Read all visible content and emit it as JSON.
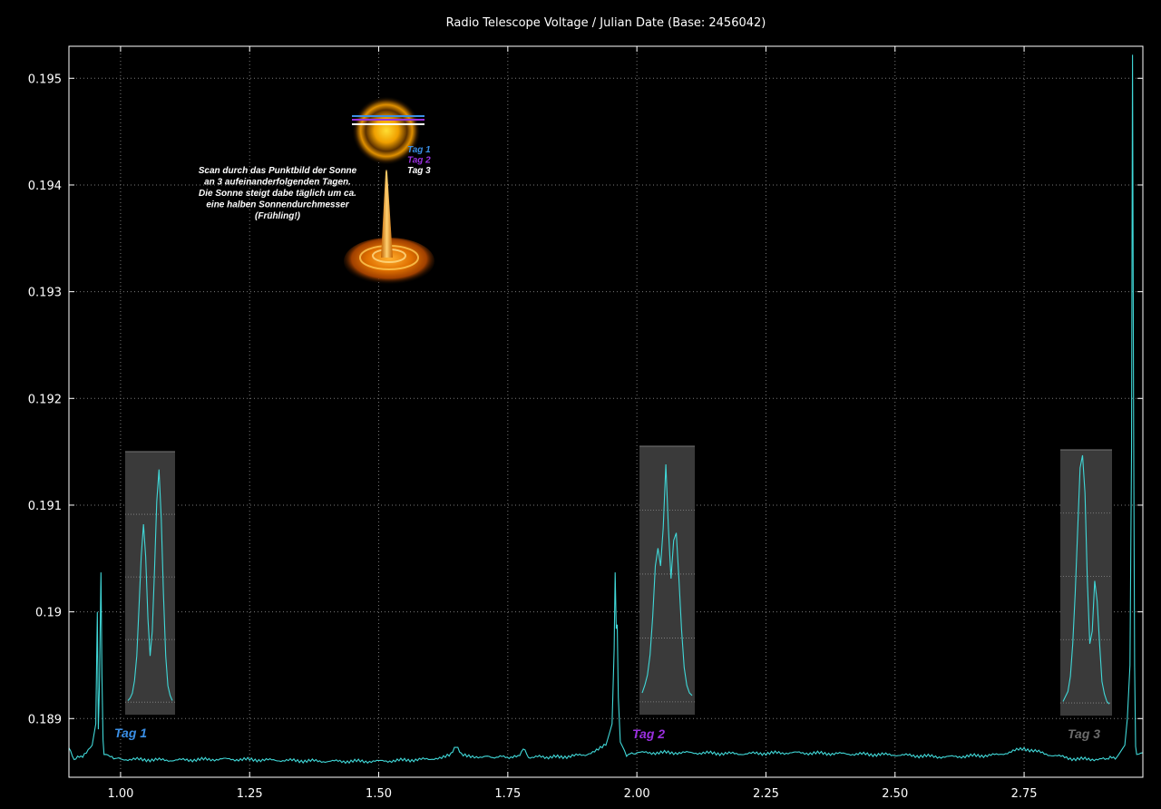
{
  "chart_data": {
    "type": "line",
    "title": "Radio Telescope Voltage / Julian Date (Base: 2456042)",
    "xlabel": "",
    "ylabel": "",
    "xlim": [
      0.9,
      2.98
    ],
    "ylim": [
      0.18845,
      0.1953
    ],
    "x_ticks": [
      "1.00",
      "1.25",
      "1.50",
      "1.75",
      "2.00",
      "2.25",
      "2.50",
      "2.75"
    ],
    "y_ticks": [
      "0.189",
      "0.19",
      "0.191",
      "0.192",
      "0.193",
      "0.194",
      "0.195"
    ],
    "grid": true,
    "series": [
      {
        "color": "#40d8d8",
        "x": [
          0.9,
          0.91,
          0.93,
          0.945,
          0.952,
          0.955,
          0.957,
          0.959,
          0.962,
          0.964,
          0.966,
          0.968,
          0.972,
          0.98,
          1.0,
          1.1,
          1.2,
          1.3,
          1.4,
          1.5,
          1.6,
          1.64,
          1.65,
          1.66,
          1.7,
          1.77,
          1.78,
          1.79,
          1.85,
          1.9,
          1.94,
          1.952,
          1.956,
          1.958,
          1.96,
          1.962,
          1.964,
          1.968,
          1.98,
          2.0,
          2.1,
          2.2,
          2.3,
          2.4,
          2.5,
          2.6,
          2.7,
          2.75,
          2.8,
          2.85,
          2.9,
          2.93,
          2.945,
          2.95,
          2.955,
          2.958,
          2.96,
          2.962,
          2.964,
          2.966,
          2.968,
          2.972,
          2.98
        ],
        "y": [
          0.18872,
          0.18862,
          0.18866,
          0.18875,
          0.18895,
          0.19,
          0.1889,
          0.1893,
          0.19037,
          0.1894,
          0.1888,
          0.18868,
          0.18866,
          0.18864,
          0.18862,
          0.18861,
          0.18862,
          0.18861,
          0.1886,
          0.1886,
          0.18862,
          0.18866,
          0.18875,
          0.18866,
          0.18864,
          0.18864,
          0.18872,
          0.18864,
          0.18864,
          0.18866,
          0.18875,
          0.18895,
          0.18965,
          0.19037,
          0.18985,
          0.18988,
          0.1892,
          0.18878,
          0.18866,
          0.18868,
          0.18868,
          0.18867,
          0.18868,
          0.18867,
          0.18866,
          0.18864,
          0.18866,
          0.18872,
          0.18866,
          0.18862,
          0.18862,
          0.18864,
          0.18875,
          0.189,
          0.1895,
          0.1915,
          0.19522,
          0.1918,
          0.1895,
          0.18875,
          0.18868,
          0.18866,
          0.18868
        ]
      }
    ],
    "insets": [
      {
        "label": "Tag 1",
        "label_color": "#3a8fe6",
        "profile": [
          0.02,
          0.03,
          0.05,
          0.1,
          0.2,
          0.4,
          0.6,
          0.73,
          0.6,
          0.35,
          0.2,
          0.3,
          0.55,
          0.82,
          0.95,
          0.75,
          0.45,
          0.2,
          0.08,
          0.04,
          0.02
        ]
      },
      {
        "label": "Tag 2",
        "label_color": "#9b30e0",
        "profile": [
          0.05,
          0.08,
          0.12,
          0.2,
          0.35,
          0.55,
          0.62,
          0.55,
          0.7,
          0.95,
          0.7,
          0.5,
          0.65,
          0.68,
          0.5,
          0.3,
          0.15,
          0.08,
          0.05,
          0.04
        ]
      },
      {
        "label": "Tag 3",
        "label_color": "#6b6b6b",
        "profile": [
          0.02,
          0.04,
          0.06,
          0.12,
          0.25,
          0.45,
          0.7,
          0.95,
          1.0,
          0.85,
          0.5,
          0.25,
          0.3,
          0.5,
          0.42,
          0.25,
          0.1,
          0.05,
          0.02,
          0.01
        ]
      }
    ],
    "annotation": {
      "lines": [
        "Scan durch das Punktbild der Sonne",
        "an 3 aufeinanderfolgenden Tagen.",
        "Die Sonne steigt dabe täglich um ca.",
        "eine halben Sonnendurchmesser",
        "(Frühling!)"
      ],
      "legend": [
        {
          "label": "Tag 1",
          "color": "#3a8fe6"
        },
        {
          "label": "Tag 2",
          "color": "#9b30e0"
        },
        {
          "label": "Tag 3",
          "color": "#ffffff"
        }
      ]
    }
  }
}
